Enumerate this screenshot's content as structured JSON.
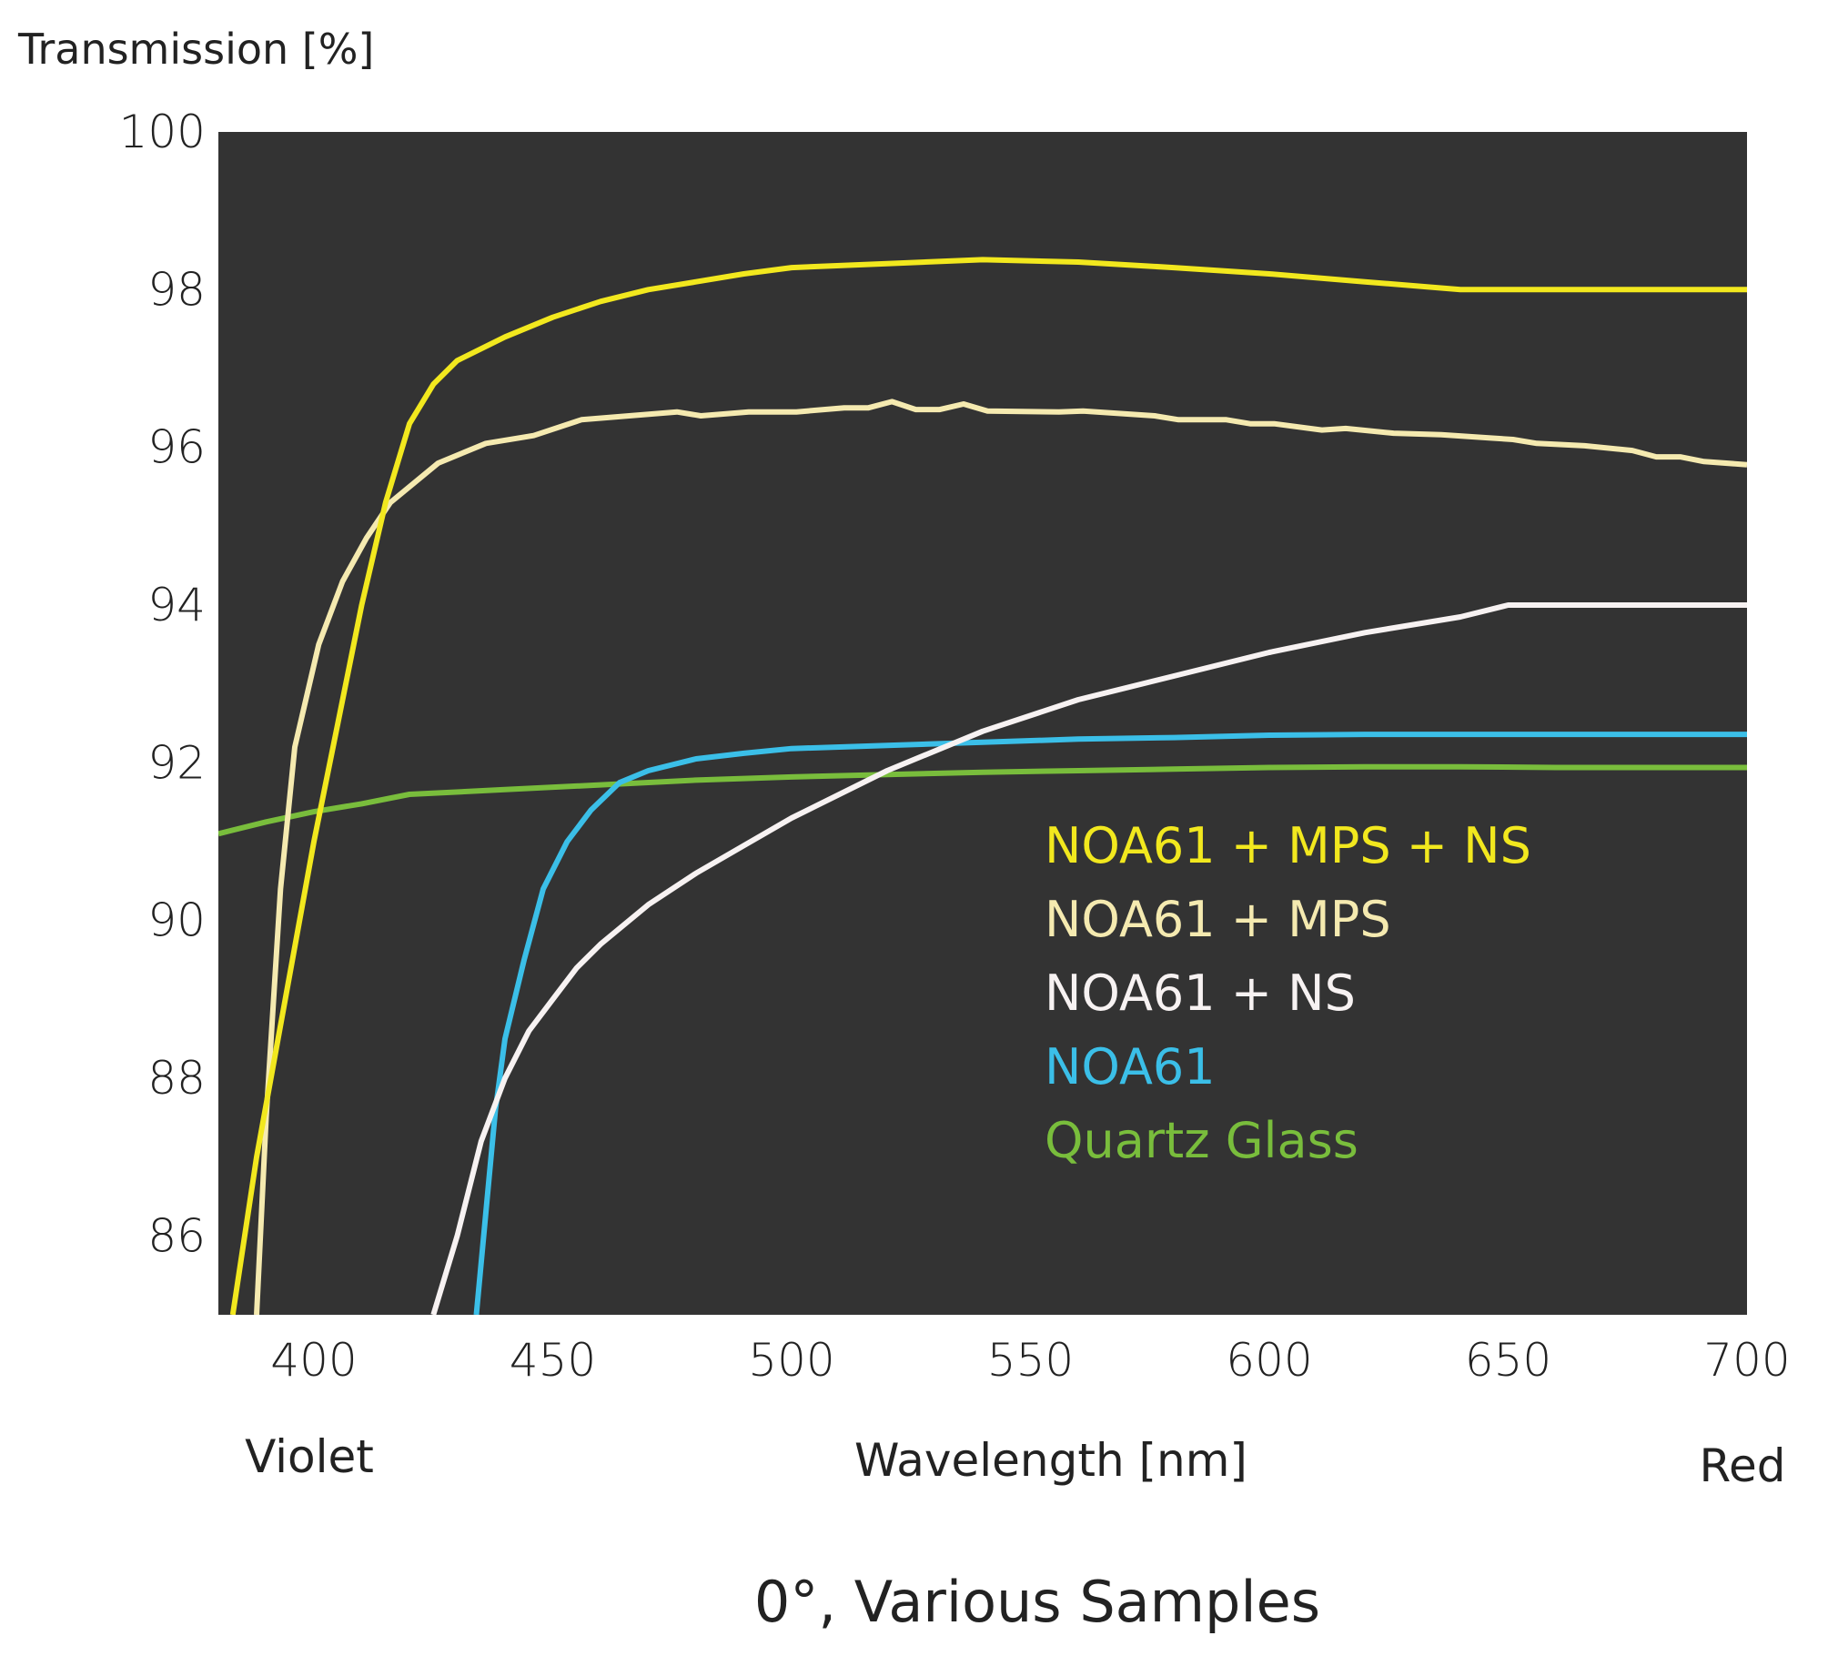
{
  "chart_data": {
    "type": "line",
    "title": "0°, Various Samples",
    "xlabel": "Wavelength [nm]",
    "ylabel": "Transmission [%]",
    "x_left_label": "Violet",
    "x_right_label": "Red",
    "xlim": [
      380,
      700
    ],
    "ylim": [
      85,
      100
    ],
    "xticks": [
      400,
      450,
      500,
      550,
      600,
      650,
      700
    ],
    "yticks": [
      86,
      88,
      90,
      92,
      94,
      96,
      98,
      100
    ],
    "plot_background": "#333333",
    "grid": false,
    "legend_position": "center-right",
    "series": [
      {
        "name": "NOA61 + MPS + NS",
        "color": "#f2e81e",
        "points": [
          [
            383,
            85
          ],
          [
            388,
            87
          ],
          [
            394,
            89
          ],
          [
            400,
            91
          ],
          [
            405,
            92.5
          ],
          [
            410,
            94
          ],
          [
            415,
            95.3
          ],
          [
            420,
            96.3
          ],
          [
            425,
            96.8
          ],
          [
            430,
            97.1
          ],
          [
            440,
            97.4
          ],
          [
            450,
            97.65
          ],
          [
            460,
            97.85
          ],
          [
            470,
            98
          ],
          [
            480,
            98.1
          ],
          [
            490,
            98.2
          ],
          [
            500,
            98.28
          ],
          [
            520,
            98.33
          ],
          [
            540,
            98.38
          ],
          [
            560,
            98.35
          ],
          [
            580,
            98.28
          ],
          [
            600,
            98.2
          ],
          [
            620,
            98.1
          ],
          [
            640,
            98
          ],
          [
            670,
            98
          ],
          [
            700,
            98
          ]
        ]
      },
      {
        "name": "NOA61 + MPS",
        "color": "#f5eab0",
        "points": [
          [
            388,
            85
          ],
          [
            390,
            87.5
          ],
          [
            393,
            90.4
          ],
          [
            396,
            92.2
          ],
          [
            401,
            93.5
          ],
          [
            406,
            94.3
          ],
          [
            411,
            94.85
          ],
          [
            416,
            95.3
          ],
          [
            426,
            95.8
          ],
          [
            436,
            96.05
          ],
          [
            446,
            96.15
          ],
          [
            456,
            96.35
          ],
          [
            466,
            96.4
          ],
          [
            476,
            96.45
          ],
          [
            481,
            96.4
          ],
          [
            491,
            96.45
          ],
          [
            501,
            96.45
          ],
          [
            511,
            96.5
          ],
          [
            516,
            96.5
          ],
          [
            521,
            96.58
          ],
          [
            526,
            96.48
          ],
          [
            531,
            96.48
          ],
          [
            536,
            96.55
          ],
          [
            541,
            96.46
          ],
          [
            556,
            96.45
          ],
          [
            561,
            96.46
          ],
          [
            576,
            96.4
          ],
          [
            581,
            96.35
          ],
          [
            591,
            96.35
          ],
          [
            596,
            96.3
          ],
          [
            601,
            96.3
          ],
          [
            611,
            96.22
          ],
          [
            616,
            96.24
          ],
          [
            626,
            96.18
          ],
          [
            636,
            96.16
          ],
          [
            646,
            96.12
          ],
          [
            651,
            96.1
          ],
          [
            656,
            96.05
          ],
          [
            666,
            96.02
          ],
          [
            676,
            95.96
          ],
          [
            681,
            95.88
          ],
          [
            686,
            95.88
          ],
          [
            691,
            95.82
          ],
          [
            700,
            95.78
          ]
        ]
      },
      {
        "name": "NOA61 + NS",
        "color": "#f7f2f2",
        "points": [
          [
            425,
            85
          ],
          [
            430,
            86
          ],
          [
            435,
            87.2
          ],
          [
            440,
            88
          ],
          [
            445,
            88.6
          ],
          [
            450,
            89
          ],
          [
            455,
            89.4
          ],
          [
            460,
            89.7
          ],
          [
            470,
            90.2
          ],
          [
            480,
            90.6
          ],
          [
            490,
            90.95
          ],
          [
            500,
            91.3
          ],
          [
            520,
            91.9
          ],
          [
            540,
            92.4
          ],
          [
            560,
            92.8
          ],
          [
            580,
            93.1
          ],
          [
            600,
            93.4
          ],
          [
            620,
            93.65
          ],
          [
            640,
            93.85
          ],
          [
            650,
            94
          ],
          [
            670,
            94
          ],
          [
            700,
            94
          ]
        ]
      },
      {
        "name": "NOA61",
        "color": "#3bbfe8",
        "points": [
          [
            434,
            85
          ],
          [
            436,
            86.3
          ],
          [
            438,
            87.6
          ],
          [
            440,
            88.5
          ],
          [
            444,
            89.5
          ],
          [
            448,
            90.4
          ],
          [
            453,
            91
          ],
          [
            458,
            91.4
          ],
          [
            464,
            91.75
          ],
          [
            470,
            91.9
          ],
          [
            480,
            92.05
          ],
          [
            490,
            92.12
          ],
          [
            500,
            92.18
          ],
          [
            520,
            92.22
          ],
          [
            540,
            92.26
          ],
          [
            560,
            92.3
          ],
          [
            580,
            92.32
          ],
          [
            600,
            92.35
          ],
          [
            620,
            92.36
          ],
          [
            640,
            92.36
          ],
          [
            660,
            92.36
          ],
          [
            680,
            92.36
          ],
          [
            700,
            92.36
          ]
        ]
      },
      {
        "name": "Quartz Glass",
        "color": "#79bd3c",
        "points": [
          [
            380,
            91.1
          ],
          [
            390,
            91.25
          ],
          [
            400,
            91.38
          ],
          [
            410,
            91.48
          ],
          [
            420,
            91.6
          ],
          [
            440,
            91.66
          ],
          [
            460,
            91.72
          ],
          [
            480,
            91.78
          ],
          [
            500,
            91.82
          ],
          [
            520,
            91.85
          ],
          [
            540,
            91.88
          ],
          [
            560,
            91.9
          ],
          [
            580,
            91.92
          ],
          [
            600,
            91.94
          ],
          [
            620,
            91.95
          ],
          [
            640,
            91.95
          ],
          [
            660,
            91.94
          ],
          [
            680,
            91.94
          ],
          [
            700,
            91.94
          ]
        ]
      }
    ]
  }
}
